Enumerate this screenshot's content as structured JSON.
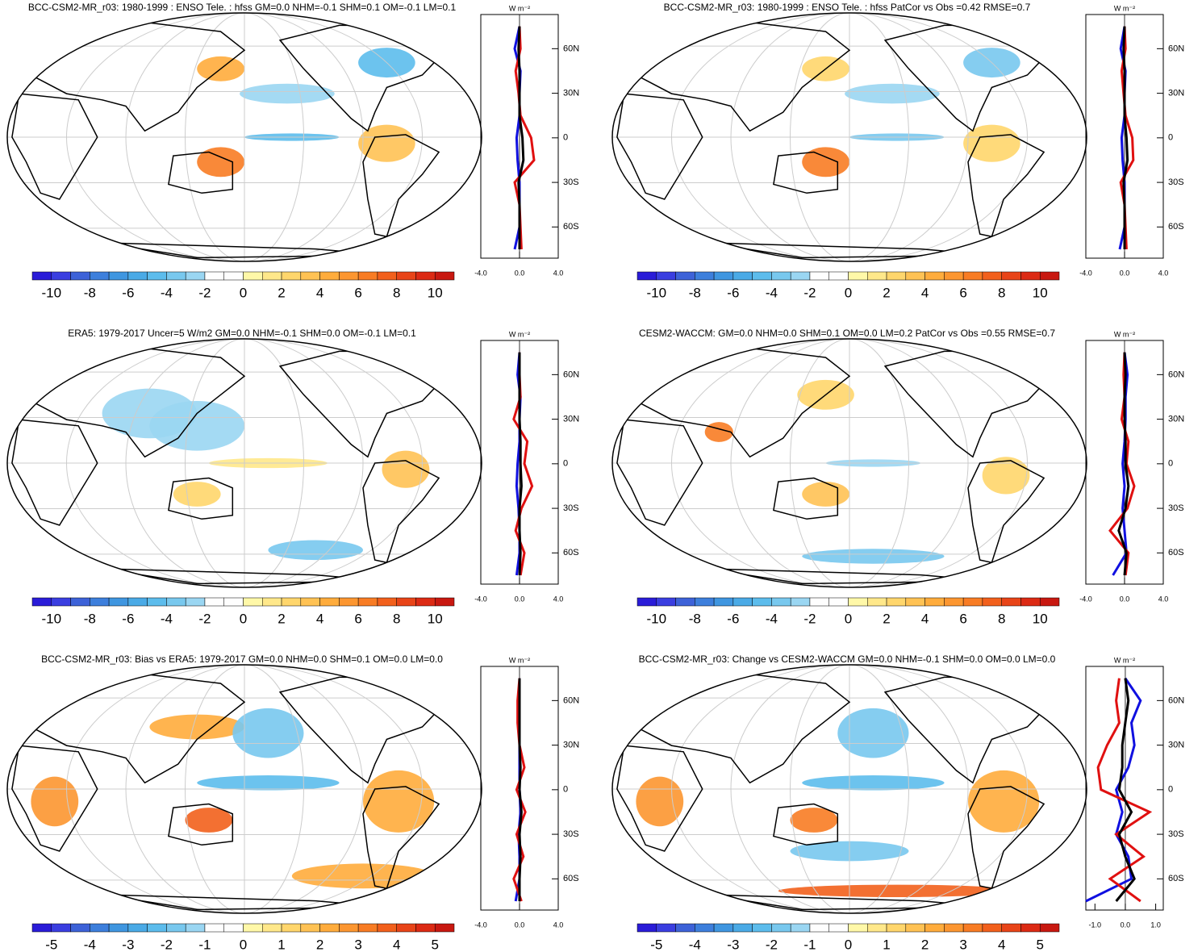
{
  "colorbar_colors": [
    "#2a1cd8",
    "#3a3ee0",
    "#3d62d8",
    "#3d7fdc",
    "#3f96e0",
    "#4aaae6",
    "#5cbcec",
    "#78c8ee",
    "#9ad6f2",
    "#fefefe",
    "#fefefe",
    "#fff8a8",
    "#ffe88a",
    "#ffd66c",
    "#ffc254",
    "#ffac3c",
    "#fc9630",
    "#f87c24",
    "#f2601c",
    "#e84418",
    "#dc2a14",
    "#c81810"
  ],
  "units": "W m⁻²",
  "panels": [
    {
      "title": "BCC-CSM2-MR_r03: 1980-1999 : ENSO Tele. : hfss GM=0.0 NHM=-0.1 SHM=0.1 OM=-0.1 LM=0.1",
      "colorbar": [
        -10,
        -8,
        -6,
        -4,
        -2,
        0,
        2,
        4,
        6,
        8,
        10
      ],
      "xlim": [
        -4,
        4
      ],
      "xticks": [
        {
          "value": -4,
          "label": "-4.0"
        },
        {
          "value": 0,
          "label": "0.0"
        },
        {
          "value": 4,
          "label": "4.0"
        }
      ],
      "ylim": [
        -81,
        83
      ],
      "yticks": [
        {
          "value": 60,
          "label": "60N"
        },
        {
          "value": 30,
          "label": "30N"
        },
        0,
        {
          "value": -30,
          "label": "30S"
        },
        {
          "value": -60,
          "label": "60S"
        }
      ],
      "lat": [
        -75,
        -60,
        -45,
        -30,
        -15,
        0,
        15,
        30,
        45,
        60,
        75
      ],
      "series": [
        {
          "color": "#1010e0",
          "values": [
            -0.5,
            0,
            0,
            0,
            -0.2,
            -0.3,
            0,
            0,
            0.1,
            -0.5,
            0
          ]
        },
        {
          "color": "#e01010",
          "values": [
            0.2,
            0.1,
            0,
            -0.5,
            1.5,
            1.2,
            0.1,
            -0.1,
            -0.4,
            0.1,
            0
          ]
        },
        {
          "color": "#000000",
          "values": [
            0,
            0,
            0,
            -0.1,
            0.4,
            0.3,
            0,
            0,
            0,
            -0.1,
            0
          ]
        }
      ]
    },
    {
      "title": "BCC-CSM2-MR_r03: 1980-1999 : ENSO Tele. : hfss PatCor vs Obs =0.42 RMSE=0.7",
      "colorbar": [
        -10,
        -8,
        -6,
        -4,
        -2,
        0,
        2,
        4,
        6,
        8,
        10
      ],
      "xlim": [
        -4,
        4
      ],
      "xticks": [
        {
          "value": -4,
          "label": "-4.0"
        },
        {
          "value": 0,
          "label": "0.0"
        },
        {
          "value": 4,
          "label": "4.0"
        }
      ],
      "ylim": [
        -81,
        83
      ],
      "yticks": [
        {
          "value": 60,
          "label": "60N"
        },
        {
          "value": 30,
          "label": "30N"
        },
        0,
        {
          "value": -30,
          "label": "30S"
        },
        {
          "value": -60,
          "label": "60S"
        }
      ],
      "lat": [
        -75,
        -60,
        -45,
        -30,
        -15,
        0,
        15,
        30,
        45,
        60,
        75
      ],
      "series": [
        {
          "color": "#1010e0",
          "values": [
            -0.5,
            0,
            0,
            0,
            -0.2,
            -0.3,
            0,
            0,
            0.1,
            -0.4,
            0
          ]
        },
        {
          "color": "#e01010",
          "values": [
            0.2,
            0.1,
            0,
            -0.4,
            0.9,
            0.8,
            0.1,
            -0.1,
            -0.3,
            0.1,
            0
          ]
        },
        {
          "color": "#000000",
          "values": [
            0,
            0,
            0,
            -0.1,
            0.3,
            0.2,
            0,
            0,
            0,
            -0.1,
            0
          ]
        }
      ]
    },
    {
      "title": "ERA5: 1979-2017 Uncer=5 W/m2 GM=0.0 NHM=-0.1 SHM=0.0 OM=-0.1 LM=0.1",
      "colorbar": [
        -10,
        -8,
        -6,
        -4,
        -2,
        0,
        2,
        4,
        6,
        8,
        10
      ],
      "xlim": [
        -4,
        4
      ],
      "xticks": [
        {
          "value": -4,
          "label": "-4.0"
        },
        {
          "value": 0,
          "label": "0.0"
        },
        {
          "value": 4,
          "label": "4.0"
        }
      ],
      "ylim": [
        -81,
        83
      ],
      "yticks": [
        {
          "value": 60,
          "label": "60N"
        },
        {
          "value": 30,
          "label": "30N"
        },
        0,
        {
          "value": -30,
          "label": "30S"
        },
        {
          "value": -60,
          "label": "60S"
        }
      ],
      "lat": [
        -75,
        -60,
        -45,
        -30,
        -15,
        0,
        15,
        30,
        45,
        60,
        75
      ],
      "series": [
        {
          "color": "#1010e0",
          "values": [
            -0.3,
            0,
            0,
            -0.1,
            -0.3,
            -0.2,
            0,
            0,
            0.1,
            -0.2,
            0
          ]
        },
        {
          "color": "#e01010",
          "values": [
            0.1,
            0.5,
            -0.4,
            0.2,
            1.3,
            0.5,
            0.8,
            -0.6,
            0.1,
            0,
            0
          ]
        },
        {
          "color": "#000000",
          "values": [
            0,
            0.1,
            0,
            0,
            0.2,
            0.1,
            0.1,
            0,
            0,
            0,
            0
          ]
        }
      ]
    },
    {
      "title": "CESM2-WACCM: GM=0.0 NHM=0.0 SHM=0.1 OM=0.0 LM=0.2 PatCor vs Obs =0.55 RMSE=0.7",
      "colorbar": [
        -10,
        -8,
        -6,
        -4,
        -2,
        0,
        2,
        4,
        6,
        8,
        10
      ],
      "xlim": [
        -4,
        4
      ],
      "xticks": [
        {
          "value": -4,
          "label": "-4.0"
        },
        {
          "value": 0,
          "label": "0.0"
        },
        {
          "value": 4,
          "label": "4.0"
        }
      ],
      "ylim": [
        -81,
        83
      ],
      "yticks": [
        {
          "value": 60,
          "label": "60N"
        },
        {
          "value": 30,
          "label": "30N"
        },
        0,
        {
          "value": -30,
          "label": "30S"
        },
        {
          "value": -60,
          "label": "60S"
        }
      ],
      "lat": [
        -75,
        -60,
        -45,
        -30,
        -15,
        0,
        15,
        30,
        45,
        60,
        75
      ],
      "series": [
        {
          "color": "#1010e0",
          "values": [
            -1.2,
            0.2,
            0,
            -0.2,
            0,
            -0.2,
            0,
            0.1,
            0.1,
            0.3,
            0
          ]
        },
        {
          "color": "#e01010",
          "values": [
            0.1,
            0.4,
            -1.5,
            0.3,
            1,
            0.2,
            0.4,
            -0.3,
            0,
            -0.1,
            0
          ]
        },
        {
          "color": "#000000",
          "values": [
            0,
            0.2,
            -0.6,
            0.1,
            0.4,
            0.1,
            0.1,
            0,
            0,
            0.1,
            0
          ]
        }
      ]
    },
    {
      "title": "BCC-CSM2-MR_r03: Bias vs ERA5: 1979-2017 GM=0.0 NHM=0.0 SHM=0.1 OM=0.0 LM=0.0",
      "colorbar": [
        -5,
        -4,
        -3,
        -2,
        -1,
        0,
        1,
        2,
        3,
        4,
        5
      ],
      "xlim": [
        -4,
        4
      ],
      "xticks": [
        {
          "value": -4,
          "label": "-4.0"
        },
        {
          "value": 0,
          "label": "0.0"
        },
        {
          "value": 4,
          "label": "4.0"
        }
      ],
      "ylim": [
        -81,
        83
      ],
      "yticks": [
        {
          "value": 60,
          "label": "60N"
        },
        {
          "value": 30,
          "label": "30N"
        },
        0,
        {
          "value": -30,
          "label": "30S"
        },
        {
          "value": -60,
          "label": "60S"
        }
      ],
      "lat": [
        -75,
        -60,
        -45,
        -30,
        -15,
        0,
        15,
        30,
        45,
        60,
        75
      ],
      "series": [
        {
          "color": "#1010e0",
          "values": [
            -0.4,
            0,
            0,
            -0.1,
            0.1,
            0,
            0,
            0,
            0,
            0,
            0
          ]
        },
        {
          "color": "#e01010",
          "values": [
            0.2,
            -0.6,
            0.4,
            -0.3,
            0.6,
            -0.3,
            0.5,
            0,
            -0.2,
            -0.2,
            0
          ]
        },
        {
          "color": "#000000",
          "values": [
            0,
            0,
            0.1,
            0,
            0.2,
            0,
            0.1,
            0,
            0,
            0,
            0
          ]
        }
      ]
    },
    {
      "title": "BCC-CSM2-MR_r03: Change vs CESM2-WACCM GM=0.0 NHM=-0.1 SHM=0.0 OM=0.0 LM=0.0",
      "colorbar": [
        -5,
        -4,
        -3,
        -2,
        -1,
        0,
        1,
        2,
        3,
        4,
        5
      ],
      "xlim": [
        -1.3,
        1.25
      ],
      "xticks": [
        {
          "value": -1,
          "label": "-1.0"
        },
        {
          "value": 0,
          "label": "0.0"
        },
        {
          "value": 1,
          "label": "1.0"
        }
      ],
      "ylim": [
        -81,
        83
      ],
      "yticks": [
        {
          "value": 60,
          "label": "60N"
        },
        {
          "value": 30,
          "label": "30N"
        },
        0,
        {
          "value": -30,
          "label": "30S"
        },
        {
          "value": -60,
          "label": "60S"
        }
      ],
      "lat": [
        -75,
        -60,
        -45,
        -30,
        -15,
        0,
        15,
        30,
        45,
        60,
        75
      ],
      "series": [
        {
          "color": "#1010e0",
          "values": [
            -1.3,
            0.2,
            0.1,
            -0.3,
            -0.1,
            -0.3,
            0.1,
            0.3,
            0.2,
            0.5,
            0
          ]
        },
        {
          "color": "#e01010",
          "values": [
            0.5,
            -0.5,
            0.6,
            -0.3,
            0.8,
            -0.8,
            -0.9,
            -0.6,
            -0.2,
            -0.3,
            -0.2
          ]
        },
        {
          "color": "#000000",
          "values": [
            -0.3,
            0.3,
            0,
            -0.2,
            0.2,
            -0.2,
            -0.1,
            -0.1,
            0,
            0.1,
            0
          ]
        }
      ]
    }
  ]
}
